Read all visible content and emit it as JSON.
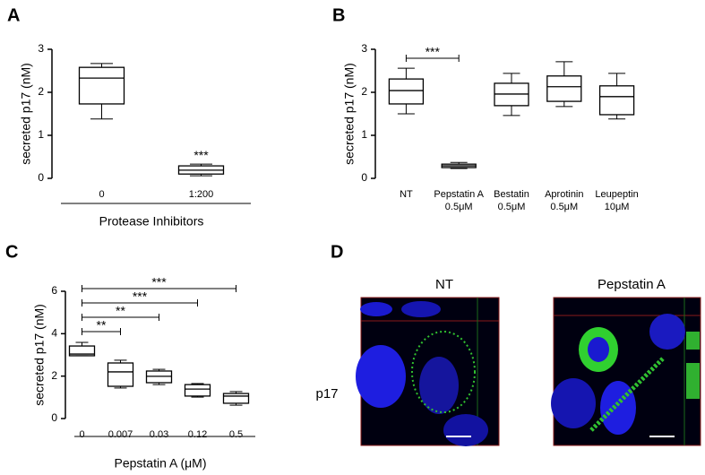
{
  "chart_data": [
    {
      "type": "box",
      "label": "A",
      "y_label": "secreted p17  (nM)",
      "x_group_label": "Protease Inhibitors",
      "categories": [
        [
          "0"
        ],
        [
          "1:200"
        ]
      ],
      "boxes": [
        {
          "min": 1.38,
          "q1": 1.73,
          "median": 2.33,
          "q3": 2.58,
          "max": 2.67
        },
        {
          "min": 0.06,
          "q1": 0.1,
          "median": 0.19,
          "q3": 0.29,
          "max": 0.33
        }
      ],
      "ylim": [
        0,
        3
      ],
      "yticks": [
        0,
        1,
        2,
        3
      ],
      "color": "#000000",
      "annotations": [
        {
          "category": 1,
          "text": "***"
        }
      ]
    },
    {
      "type": "box",
      "label": "B",
      "y_label": "secreted p17  (nM)",
      "categories": [
        [
          "NT"
        ],
        [
          "Pepstatin A",
          "0.5μM"
        ],
        [
          "Bestatin",
          "0.5μM"
        ],
        [
          "Aprotinin",
          "0.5μM"
        ],
        [
          "Leupeptin",
          "10μM"
        ]
      ],
      "boxes": [
        {
          "min": 1.5,
          "q1": 1.73,
          "median": 2.04,
          "q3": 2.31,
          "max": 2.56
        },
        {
          "min": 0.23,
          "q1": 0.25,
          "median": 0.29,
          "q3": 0.33,
          "max": 0.37
        },
        {
          "min": 1.46,
          "q1": 1.69,
          "median": 1.96,
          "q3": 2.21,
          "max": 2.44
        },
        {
          "min": 1.67,
          "q1": 1.79,
          "median": 2.13,
          "q3": 2.38,
          "max": 2.71
        },
        {
          "min": 1.38,
          "q1": 1.48,
          "median": 1.9,
          "q3": 2.15,
          "max": 2.44
        }
      ],
      "ylim": [
        0,
        3
      ],
      "yticks": [
        0,
        1,
        2,
        3
      ],
      "color": "#000000",
      "comparisons": [
        {
          "from": 0,
          "to": 1,
          "text": "***"
        }
      ]
    },
    {
      "type": "box",
      "label": "C",
      "y_label": "secreted p17  (nM)",
      "x_group_label": "Pepstatin A (μM)",
      "categories": [
        [
          "0"
        ],
        [
          "0.007"
        ],
        [
          "0.03"
        ],
        [
          "0.12"
        ],
        [
          "0.5"
        ]
      ],
      "boxes": [
        {
          "min": 2.96,
          "q1": 2.96,
          "median": 3.04,
          "q3": 3.42,
          "max": 3.59
        },
        {
          "min": 1.44,
          "q1": 1.52,
          "median": 2.2,
          "q3": 2.62,
          "max": 2.75
        },
        {
          "min": 1.6,
          "q1": 1.69,
          "median": 1.99,
          "q3": 2.24,
          "max": 2.32
        },
        {
          "min": 1.01,
          "q1": 1.06,
          "median": 1.39,
          "q3": 1.6,
          "max": 1.65
        },
        {
          "min": 0.63,
          "q1": 0.72,
          "median": 1.06,
          "q3": 1.18,
          "max": 1.27
        }
      ],
      "ylim": [
        0,
        6
      ],
      "yticks": [
        0,
        2,
        4,
        6
      ],
      "color": "#000000",
      "comparisons": [
        {
          "from": 0,
          "to": 1,
          "text": "**"
        },
        {
          "from": 0,
          "to": 2,
          "text": "**"
        },
        {
          "from": 0,
          "to": 3,
          "text": "***"
        },
        {
          "from": 0,
          "to": 4,
          "text": "***"
        }
      ]
    }
  ],
  "panel_d": {
    "label": "D",
    "columns": [
      "NT",
      "Pepstatin A"
    ],
    "row_label": "p17"
  }
}
